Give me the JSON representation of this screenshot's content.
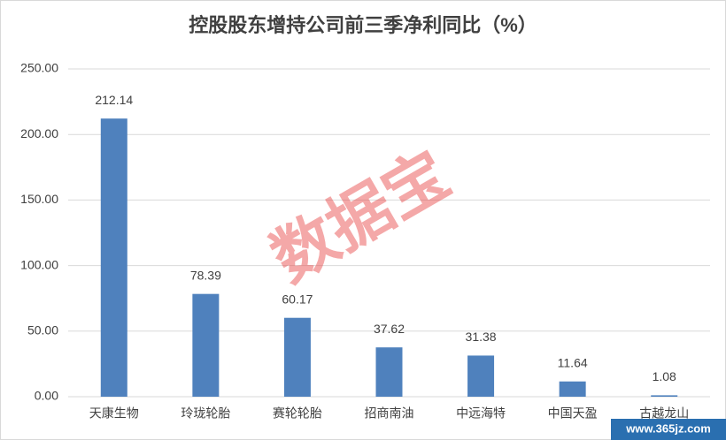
{
  "chart_data": {
    "type": "bar",
    "title": "控股股东增持公司前三季净利同比（%）",
    "categories": [
      "天康生物",
      "玲珑轮胎",
      "赛轮轮胎",
      "招商南油",
      "中远海特",
      "中国天盈",
      "古越龙山"
    ],
    "values": [
      212.14,
      78.39,
      60.17,
      37.62,
      31.38,
      11.64,
      1.08
    ],
    "color": "#4f81bd",
    "ylim": [
      0,
      250
    ],
    "yticks": [
      {
        "value": 0,
        "label": "0.00"
      },
      {
        "value": 50,
        "label": "50.00"
      },
      {
        "value": 100,
        "label": "100.00"
      },
      {
        "value": 150,
        "label": "150.00"
      },
      {
        "value": 200,
        "label": "200.00"
      },
      {
        "value": 250,
        "label": "250.00"
      }
    ],
    "grid": true,
    "annotations": [
      "数据宝",
      "www.365jz.com"
    ]
  }
}
